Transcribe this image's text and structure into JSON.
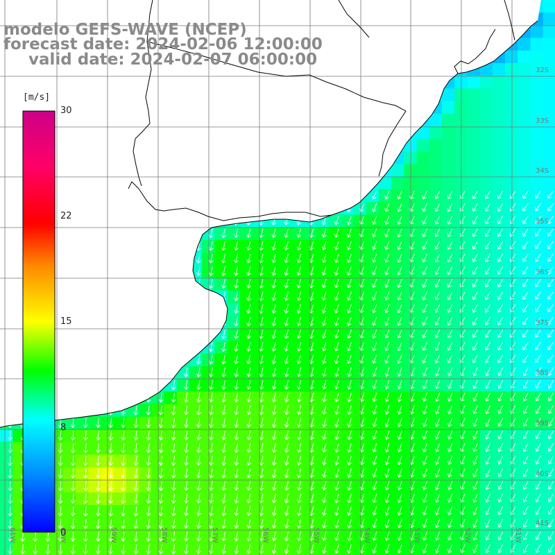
{
  "titles": {
    "model": "modelo GEFS-WAVE (NCEP)",
    "forecast": "forecast date: 2024-02-06 12:00:00",
    "valid": "valid date: 2024-02-07 06:00:00"
  },
  "colorbar": {
    "unit": "[m/s]",
    "min": 0,
    "max": 30,
    "tick_labels": [
      "30",
      "22",
      "15",
      "8",
      "0"
    ],
    "tick_values": [
      30,
      22,
      15,
      8,
      0
    ],
    "colormap_stops": [
      {
        "value": 0,
        "color": "#0000ff"
      },
      {
        "value": 4,
        "color": "#0088ff"
      },
      {
        "value": 8,
        "color": "#00ffff"
      },
      {
        "value": 11.5,
        "color": "#00ff00"
      },
      {
        "value": 15,
        "color": "#ffff00"
      },
      {
        "value": 19,
        "color": "#ff8800"
      },
      {
        "value": 22,
        "color": "#ff0000"
      },
      {
        "value": 26,
        "color": "#ff0066"
      },
      {
        "value": 30,
        "color": "#cc0088"
      }
    ]
  },
  "lon_labels": [
    "61W",
    "60W",
    "59W",
    "58W",
    "57W",
    "56W",
    "55W",
    "54W",
    "53W",
    "52W",
    "51W"
  ],
  "lat_labels": [
    "32S",
    "33S",
    "34S",
    "35S",
    "36S",
    "37S",
    "38S",
    "39S",
    "40S",
    "41S"
  ],
  "colors": {
    "coastline": "#000000",
    "grid": "#777777",
    "arrows": "#ffffff",
    "land": "#ffffff"
  }
}
